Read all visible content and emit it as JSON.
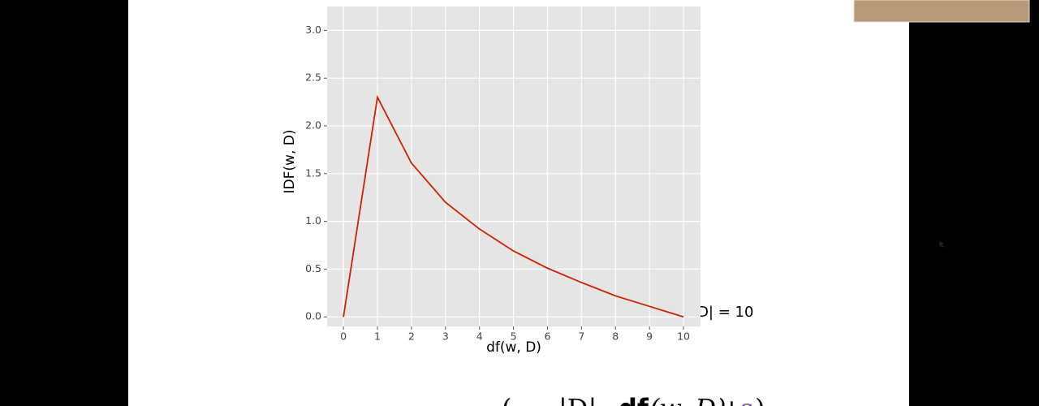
{
  "chart_data": {
    "type": "line",
    "x_label": "df(w, D)",
    "y_label": "IDF(w, D)",
    "annotation": "|D| = 10",
    "x": [
      0,
      1,
      2,
      3,
      4,
      5,
      6,
      7,
      8,
      9,
      10
    ],
    "values": [
      0,
      2.3,
      1.61,
      1.2,
      0.92,
      0.69,
      0.51,
      0.36,
      0.22,
      0.11,
      0
    ],
    "color": "#cc2200",
    "xlim": [
      -0.48,
      10.5
    ],
    "ylim": [
      -0.1,
      3.25
    ],
    "xticks": [
      0,
      1,
      2,
      3,
      4,
      5,
      6,
      7,
      8,
      9,
      10
    ],
    "yticks": [
      {
        "value": 0,
        "label": "0.0"
      },
      {
        "value": 0.5,
        "label": "0.5"
      },
      {
        "value": 1,
        "label": "1.0"
      },
      {
        "value": 1.5,
        "label": "1.5"
      },
      {
        "value": 2,
        "label": "2.0"
      },
      {
        "value": 2.5,
        "label": "2.5"
      },
      {
        "value": 3,
        "label": "3.0"
      }
    ],
    "grid": true
  },
  "formula": [
    "(",
    "|D|",
    "−",
    "df",
    "(w, D)",
    "+",
    "s",
    ")"
  ]
}
